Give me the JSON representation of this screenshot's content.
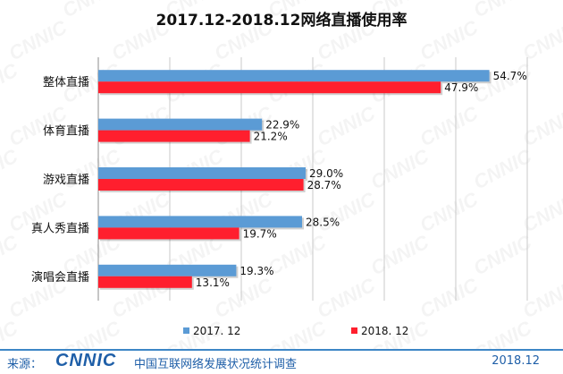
{
  "chart_data": {
    "type": "bar",
    "orientation": "horizontal",
    "title": "2017.12-2018.12网络直播使用率",
    "categories": [
      "整体直播",
      "体育直播",
      "游戏直播",
      "真人秀直播",
      "演唱会直播"
    ],
    "series": [
      {
        "name": "2017. 12",
        "values": [
          54.7,
          22.9,
          29.0,
          28.5,
          19.3
        ],
        "labels": [
          "54.7%",
          "22.9%",
          "29.0%",
          "28.5%",
          "19.3%"
        ],
        "color": "#5b9bd5"
      },
      {
        "name": "2018. 12",
        "values": [
          47.9,
          21.2,
          28.7,
          19.7,
          13.1
        ],
        "labels": [
          "47.9%",
          "21.2%",
          "28.7%",
          "19.7%",
          "13.1%"
        ],
        "color": "#ff1f2e"
      }
    ],
    "xlim": [
      0,
      60
    ],
    "grid": true,
    "legend": "bottom",
    "xlabel": "",
    "ylabel": ""
  },
  "footer": {
    "source_label": "来源：",
    "logo_text": "CNNIC",
    "org_name": "中国互联网络发展状况统计调查",
    "date": "2018.12"
  },
  "watermark": "CNNIC"
}
